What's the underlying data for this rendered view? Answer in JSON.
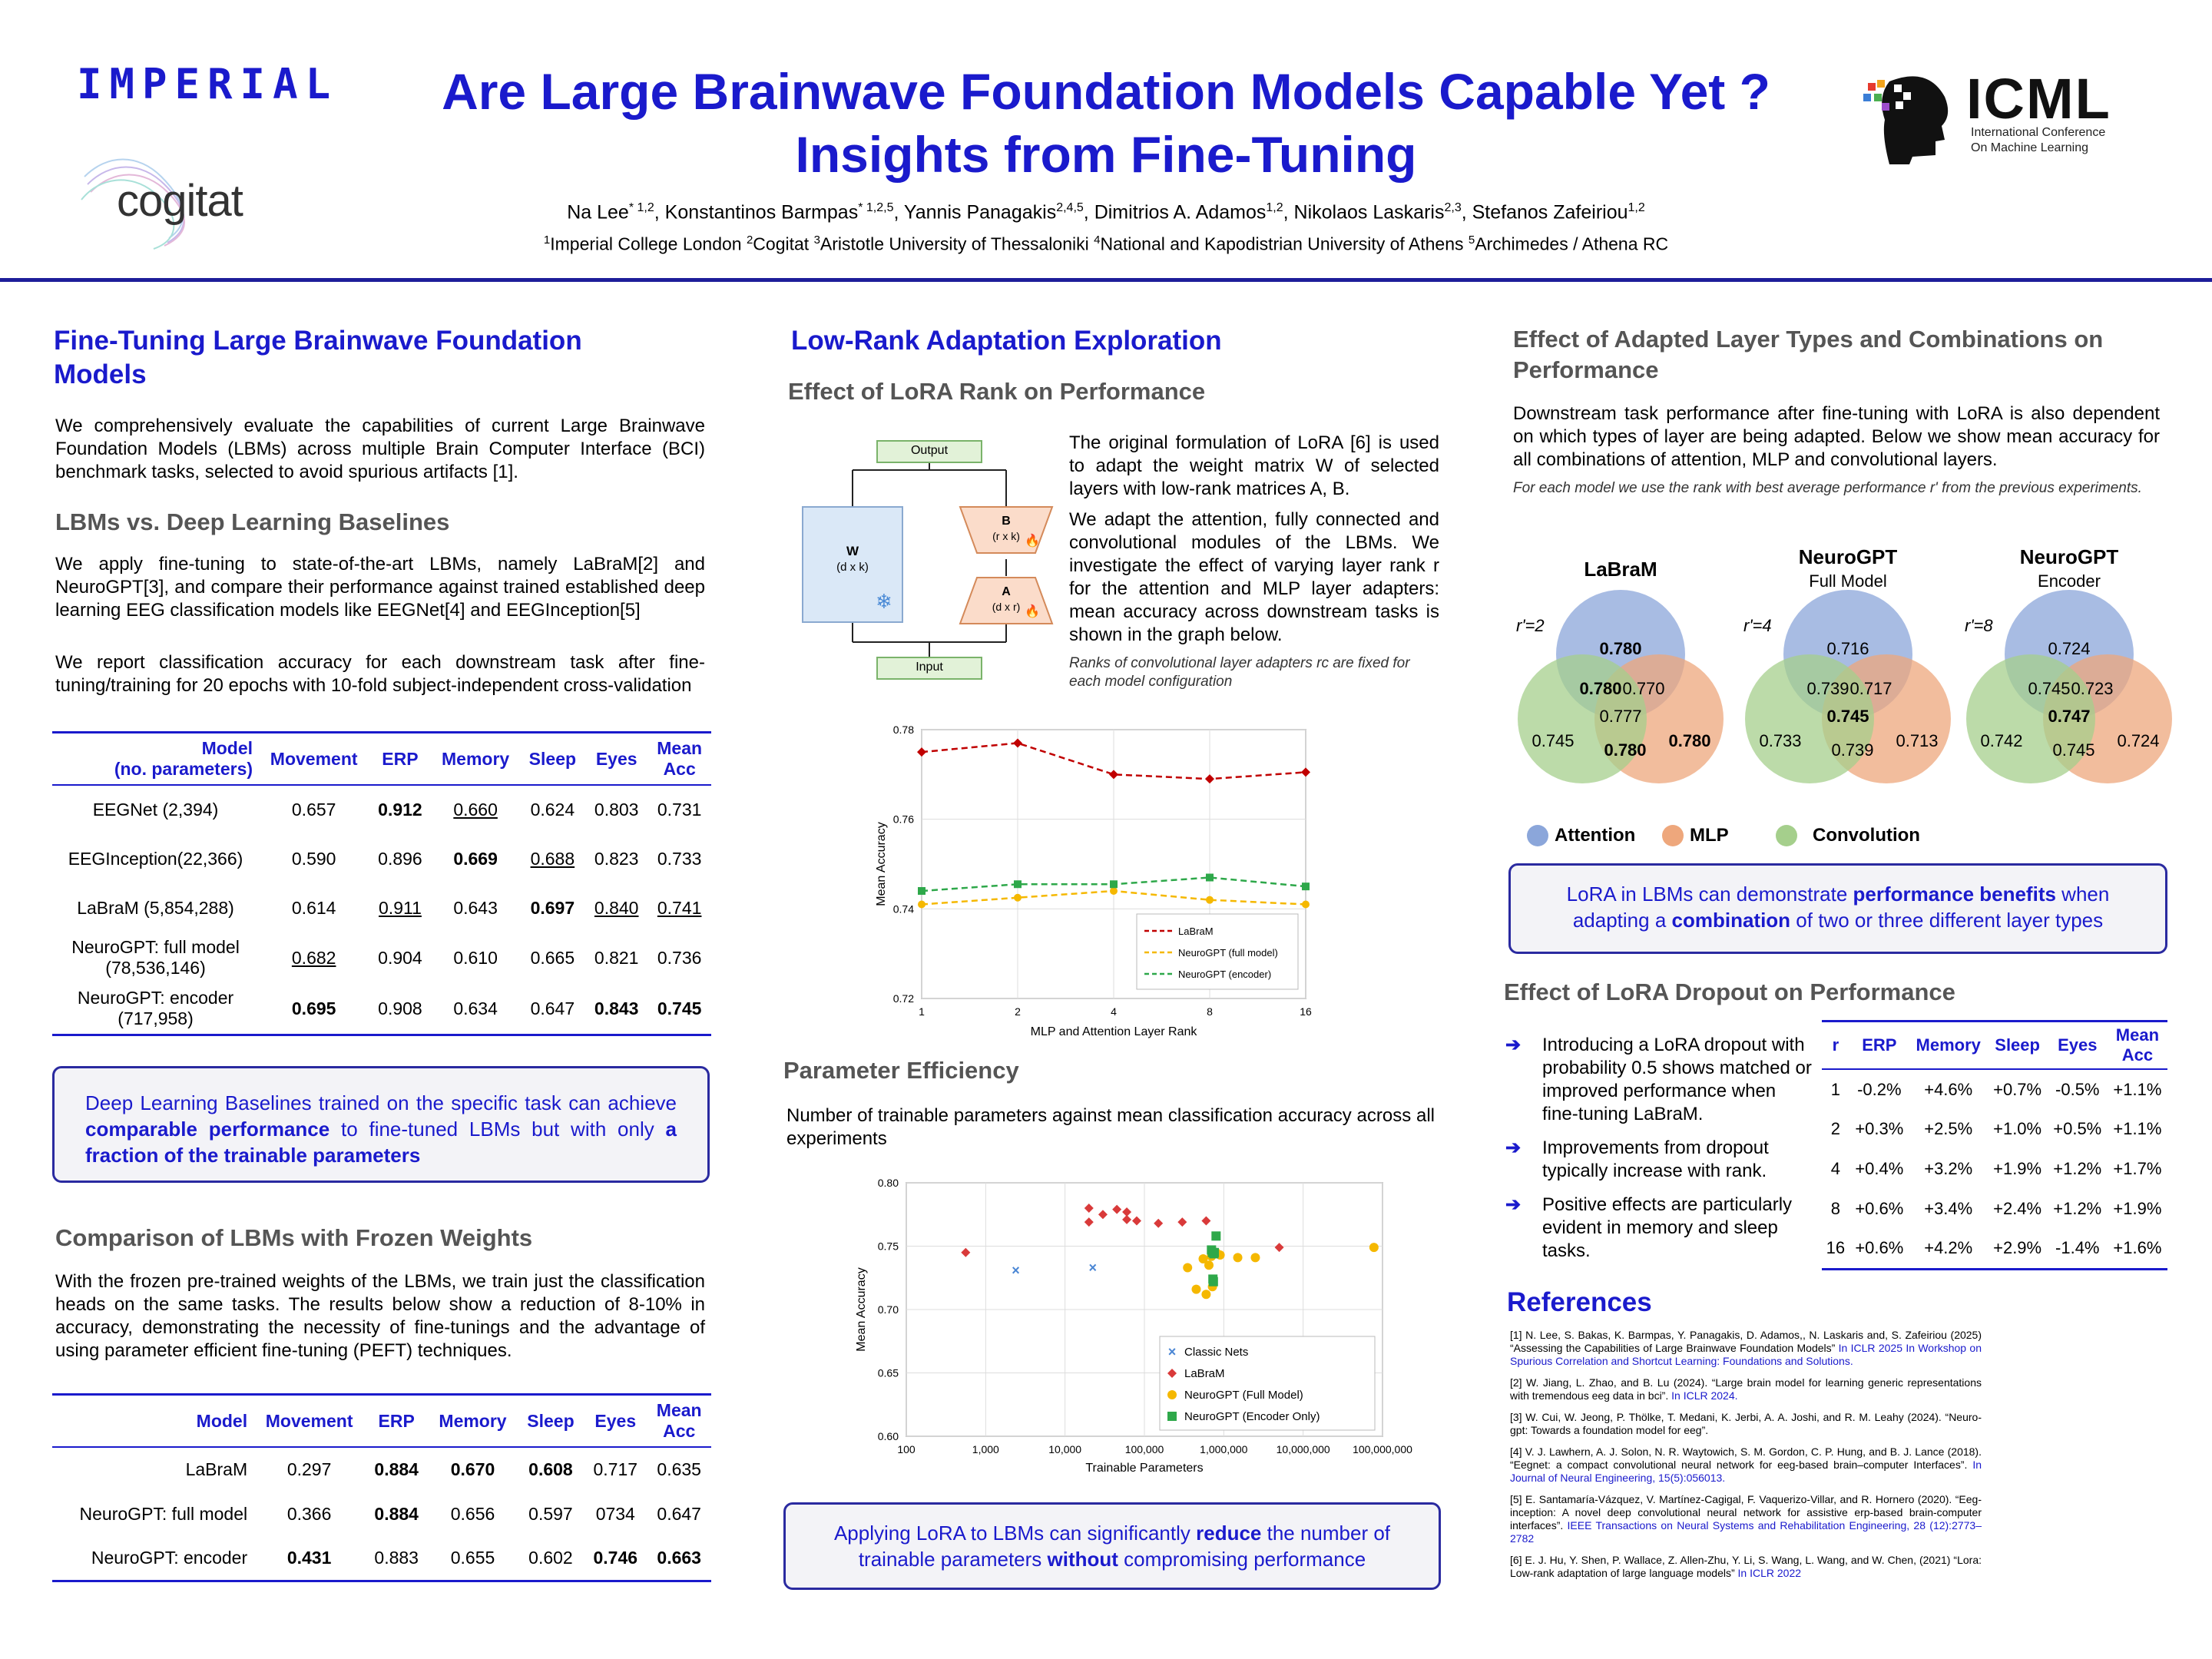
{
  "header": {
    "logo_imperial": "IMPERIAL",
    "logo_cogitat": "cogitat",
    "logo_icml": "ICML",
    "logo_icml_sub1": "International Conference",
    "logo_icml_sub2": "On Machine Learning",
    "title_line1": "Are Large Brainwave Foundation Models Capable Yet ?",
    "title_line2": "Insights from Fine-Tuning",
    "authors": [
      {
        "name": "Na Lee",
        "sup": "* 1,2"
      },
      {
        "name": "Konstantinos Barmpas",
        "sup": "* 1,2,5"
      },
      {
        "name": "Yannis Panagakis",
        "sup": "2,4,5"
      },
      {
        "name": "Dimitrios A. Adamos",
        "sup": "1,2"
      },
      {
        "name": "Nikolaos Laskaris",
        "sup": "2,3"
      },
      {
        "name": "Stefanos Zafeiriou",
        "sup": "1,2"
      }
    ],
    "affiliations": [
      {
        "sup": "1",
        "name": "Imperial College London"
      },
      {
        "sup": "2",
        "name": "Cogitat"
      },
      {
        "sup": "3",
        "name": "Aristotle University of Thessaloniki"
      },
      {
        "sup": "4",
        "name": "National and Kapodistrian University of Athens"
      },
      {
        "sup": "5",
        "name": "Archimedes / Athena RC"
      }
    ]
  },
  "col1": {
    "title": "Fine-Tuning Large Brainwave Foundation Models",
    "intro": "We comprehensively evaluate the capabilities of current Large Brainwave Foundation Models (LBMs) across multiple Brain Computer Interface (BCI) benchmark tasks, selected to avoid spurious artifacts [1].",
    "sub1": "LBMs vs. Deep Learning Baselines",
    "p1": "We apply fine-tuning to state-of-the-art LBMs, namely LaBraM[2] and NeuroGPT[3], and compare their performance against trained established deep learning EEG classification models like EEGNet[4] and EEGInception[5]",
    "p2": "We report classification accuracy for each downstream task after fine-tuning/training for 20 epochs with 10-fold subject-independent cross-validation",
    "table1": {
      "headers": [
        "Model\n(no. parameters)",
        "Movement",
        "ERP",
        "Memory",
        "Sleep",
        "Eyes",
        "Mean\nAcc"
      ],
      "rows": [
        {
          "model": "EEGNet (2,394)",
          "cells": [
            "0.657",
            "0.912",
            "0.660",
            "0.624",
            "0.803",
            "0.731"
          ]
        },
        {
          "model": "EEGInception(22,366)",
          "cells": [
            "0.590",
            "0.896",
            "0.669",
            "0.688",
            "0.823",
            "0.733"
          ]
        },
        {
          "model": "LaBraM (5,854,288)",
          "cells": [
            "0.614",
            "0.911",
            "0.643",
            "0.697",
            "0.840",
            "0.741"
          ]
        },
        {
          "model": "NeuroGPT: full model\n(78,536,146)",
          "cells": [
            "0.682",
            "0.904",
            "0.610",
            "0.665",
            "0.821",
            "0.736"
          ]
        },
        {
          "model": "NeuroGPT: encoder\n(717,958)",
          "cells": [
            "0.695",
            "0.908",
            "0.634",
            "0.647",
            "0.843",
            "0.745"
          ]
        }
      ]
    },
    "callout1_parts": [
      "Deep Learning Baselines trained on the specific task can achieve ",
      "comparable performance",
      " to fine-tuned LBMs but with only ",
      "a fraction of the trainable parameters"
    ],
    "sub2": "Comparison of LBMs with Frozen Weights",
    "p3": "With the frozen pre-trained weights of the LBMs, we train just the classification heads on the same tasks. The results below show a reduction of 8-10% in accuracy, demonstrating the necessity of fine-tunings and the advantage of using parameter efficient fine-tuning (PEFT) techniques.",
    "table2": {
      "headers": [
        "Model",
        "Movement",
        "ERP",
        "Memory",
        "Sleep",
        "Eyes",
        "Mean\nAcc"
      ],
      "rows": [
        {
          "model": "LaBraM",
          "cells": [
            "0.297",
            "0.884",
            "0.670",
            "0.608",
            "0.717",
            "0.635"
          ]
        },
        {
          "model": "NeuroGPT: full model",
          "cells": [
            "0.366",
            "0.884",
            "0.656",
            "0.597",
            "0734",
            "0.647"
          ]
        },
        {
          "model": "NeuroGPT: encoder",
          "cells": [
            "0.431",
            "0.883",
            "0.655",
            "0.602",
            "0.746",
            "0.663"
          ]
        }
      ]
    }
  },
  "col2": {
    "title": "Low-Rank Adaptation Exploration",
    "sub1": "Effect of LoRA Rank on Performance",
    "diagram": {
      "output": "Output",
      "input": "Input",
      "w": "W",
      "w_dim": "(d x k)",
      "b": "B",
      "b_dim": "(r x k)",
      "a": "A",
      "a_dim": "(d x r)"
    },
    "p1": "The original formulation of LoRA [6] is used to adapt the weight matrix W of selected layers with low-rank matrices A, B.",
    "p2": "We adapt the attention, fully connected and convolutional modules of the LBMs. We investigate the effect of varying layer rank r for the attention and MLP layer adapters: mean accuracy across downstream tasks is shown in the graph below.",
    "note": "Ranks of convolutional layer adapters rc are fixed for each model configuration",
    "sub2": "Parameter Efficiency",
    "p3": "Number of trainable parameters against mean classification accuracy across all experiments",
    "callout_parts": [
      "Applying LoRA to LBMs can significantly ",
      "reduce",
      " the number of trainable parameters ",
      "without",
      " compromising performance"
    ]
  },
  "col3": {
    "title": "Effect of Adapted Layer Types and Combinations on Performance",
    "p1": "Downstream task performance after fine-tuning with LoRA is also dependent on which types of layer are being adapted. Below we show mean accuracy for all combinations of attention, MLP and convolutional layers.",
    "note": "For each model we use the rank with best average performance r' from the previous experiments.",
    "venns": [
      {
        "title": "LaBraM",
        "subtitle": "",
        "rank": "r'=2",
        "att": "0.780",
        "mlp": "0.780",
        "conv": "0.745",
        "att_conv": "0.780",
        "att_mlp": "0.770",
        "mlp_conv": "0.780",
        "all": "0.777"
      },
      {
        "title": "NeuroGPT",
        "subtitle": "Full Model",
        "rank": "r'=4",
        "att": "0.716",
        "mlp": "0.713",
        "conv": "0.733",
        "att_conv": "0.739",
        "att_mlp": "0.717",
        "mlp_conv": "0.739",
        "all": "0.745"
      },
      {
        "title": "NeuroGPT",
        "subtitle": "Encoder",
        "rank": "r'=8",
        "att": "0.724",
        "mlp": "0.724",
        "conv": "0.742",
        "att_conv": "0.745",
        "att_mlp": "0.723",
        "mlp_conv": "0.745",
        "all": "0.747"
      }
    ],
    "legend": [
      "Attention",
      "MLP",
      "Convolution"
    ],
    "colors": {
      "attention": "#8ba6da",
      "mlp": "#eea77c",
      "convolution": "#a5cf8c"
    },
    "callout_parts": [
      "LoRA in LBMs can demonstrate ",
      "performance benefits",
      " when adapting a ",
      "combination",
      " of two or three different layer types"
    ],
    "sub2": "Effect of LoRA Dropout on Performance",
    "bullets": [
      "Introducing a LoRA dropout with probability 0.5 shows matched or improved performance when fine-tuning LaBraM.",
      "Improvements from dropout typically increase with rank.",
      "Positive effects are particularly evident in memory and sleep tasks."
    ],
    "bullet_arrow": "➔",
    "table3": {
      "headers": [
        "r",
        "ERP",
        "Memory",
        "Sleep",
        "Eyes",
        "Mean\nAcc"
      ],
      "rows": [
        [
          "1",
          "-0.2%",
          "+4.6%",
          "+0.7%",
          "-0.5%",
          "+1.1%"
        ],
        [
          "2",
          "+0.3%",
          "+2.5%",
          "+1.0%",
          "+0.5%",
          "+1.1%"
        ],
        [
          "4",
          "+0.4%",
          "+3.2%",
          "+1.9%",
          "+1.2%",
          "+1.7%"
        ],
        [
          "8",
          "+0.6%",
          "+3.4%",
          "+2.4%",
          "+1.2%",
          "+1.9%"
        ],
        [
          "16",
          "+0.6%",
          "+4.2%",
          "+2.9%",
          "-1.4%",
          "+1.6%"
        ]
      ]
    },
    "refs_title": "References",
    "refs": [
      {
        "text": "[1] N. Lee, S. Bakas, K. Barmpas, Y. Panagakis, D. Adamos,, N. Laskaris and, S. Zafeiriou (2025) “Assessing the Capabilities of Large Brainwave Foundation Models” ",
        "link": "In ICLR 2025 In Workshop on Spurious Correlation and Shortcut Learning: Foundations and Solutions."
      },
      {
        "text": "[2] W. Jiang, L. Zhao, and B. Lu (2024). “Large brain model for learning generic representations with tremendous eeg data in bci”. ",
        "link": "In ICLR 2024."
      },
      {
        "text": "[3] W. Cui, W. Jeong, P. Thölke, T. Medani, K. Jerbi, A. A. Joshi, and R. M. Leahy (2024). “Neuro-gpt: Towards a foundation model for eeg”.",
        "link": ""
      },
      {
        "text": "[4] V. J. Lawhern, A. J. Solon, N. R. Waytowich, S. M. Gordon, C. P. Hung, and B. J. Lance (2018). “Eegnet: a compact convolutional neural network for eeg-based brain–computer Interfaces”. ",
        "link": "In Journal of Neural Engineering, 15(5):056013."
      },
      {
        "text": "[5] E. Santamaría-Vázquez, V. Martínez-Cagigal, F. Vaquerizo-Villar, and R. Hornero (2020). “Eeg-inception: A novel deep convolutional neural network for assistive erp-based brain-computer interfaces”. ",
        "link": "IEEE Transactions on Neural Systems and Rehabilitation Engineering, 28 (12):2773–2782"
      },
      {
        "text": "[6] E. J. Hu, Y. Shen, P. Wallace, Z. Allen-Zhu, Y. Li, S. Wang, L. Wang, and W. Chen, (2021) “Lora: Low-rank adaptation of large language models” ",
        "link": "In ICLR 2022"
      }
    ]
  },
  "chart_data": [
    {
      "type": "line",
      "title": "",
      "xlabel": "MLP and Attention Layer Rank",
      "ylabel": "Mean Accuracy",
      "x": [
        "1",
        "2",
        "4",
        "8",
        "16"
      ],
      "ylim": [
        0.72,
        0.78
      ],
      "yticks": [
        "0.72",
        "0.74",
        "0.76",
        "0.78"
      ],
      "series": [
        {
          "name": "LaBraM",
          "color": "#c00000",
          "values": [
            0.775,
            0.777,
            0.77,
            0.769,
            0.7705
          ]
        },
        {
          "name": "NeuroGPT (full model)",
          "color": "#f5b800",
          "values": [
            0.741,
            0.7425,
            0.744,
            0.742,
            0.741
          ]
        },
        {
          "name": "NeuroGPT (encoder)",
          "color": "#2ea84a",
          "values": [
            0.744,
            0.7455,
            0.7455,
            0.747,
            0.745
          ]
        }
      ]
    },
    {
      "type": "scatter",
      "title": "",
      "xlabel": "Trainable Parameters",
      "ylabel": "Mean Accuracy",
      "xscale": "log",
      "xlim": [
        100,
        100000000
      ],
      "xticks": [
        "100",
        "1,000",
        "10,000",
        "100,000",
        "1,000,000",
        "10,000,000",
        "100,000,000"
      ],
      "ylim": [
        0.6,
        0.8
      ],
      "yticks": [
        "0.60",
        "0.65",
        "0.70",
        "0.75",
        "0.80"
      ],
      "series": [
        {
          "name": "Classic Nets",
          "color": "#4a86d4",
          "marker": "x",
          "points": [
            [
              2394,
              0.731
            ],
            [
              22366,
              0.733
            ]
          ]
        },
        {
          "name": "LaBraM",
          "color": "#d93a3a",
          "marker": "diamond",
          "points": [
            [
              560,
              0.745
            ],
            [
              20000,
              0.78
            ],
            [
              30000,
              0.775
            ],
            [
              45000,
              0.779
            ],
            [
              60000,
              0.777
            ],
            [
              80000,
              0.77
            ],
            [
              150000,
              0.768
            ],
            [
              300000,
              0.769
            ],
            [
              600000,
              0.77
            ],
            [
              5000000,
              0.749
            ],
            [
              20000,
              0.769
            ],
            [
              60000,
              0.771
            ]
          ]
        },
        {
          "name": "NeuroGPT (Full Model)",
          "color": "#f5b800",
          "marker": "circle",
          "points": [
            [
              350000,
              0.733
            ],
            [
              450000,
              0.716
            ],
            [
              550000,
              0.74
            ],
            [
              600000,
              0.712
            ],
            [
              700000,
              0.742
            ],
            [
              800000,
              0.745
            ],
            [
              900000,
              0.743
            ],
            [
              1500000,
              0.741
            ],
            [
              2500000,
              0.741
            ],
            [
              78000000,
              0.749
            ],
            [
              650000,
              0.735
            ],
            [
              720000,
              0.718
            ]
          ]
        },
        {
          "name": "NeuroGPT (Encoder Only)",
          "color": "#2ea84a",
          "marker": "square",
          "points": [
            [
              700000,
              0.747
            ],
            [
              720000,
              0.745
            ],
            [
              750000,
              0.744
            ],
            [
              800000,
              0.758
            ],
            [
              730000,
              0.724
            ],
            [
              760000,
              0.745
            ],
            [
              740000,
              0.722
            ]
          ]
        }
      ]
    }
  ]
}
